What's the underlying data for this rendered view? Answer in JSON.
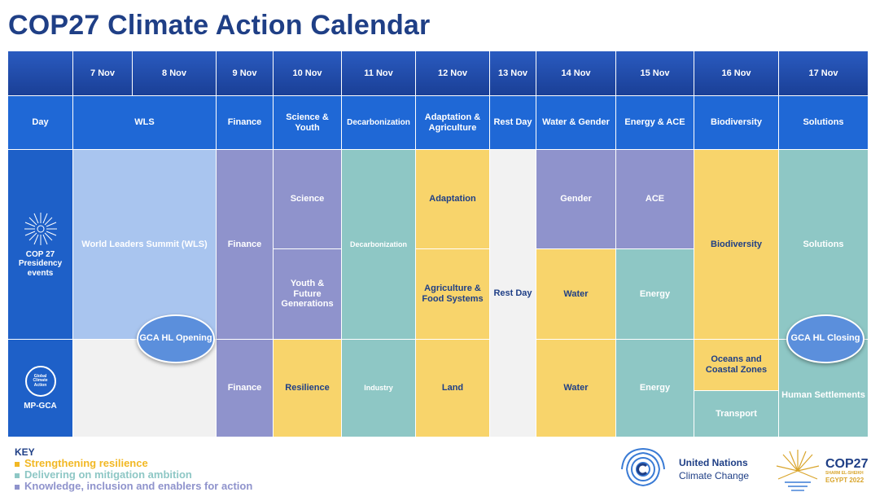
{
  "title": "COP27 Climate Action Calendar",
  "dates": [
    "7 Nov",
    "8 Nov",
    "9 Nov",
    "10 Nov",
    "11 Nov",
    "12 Nov",
    "13 Nov",
    "14 Nov",
    "15 Nov",
    "16 Nov",
    "17 Nov"
  ],
  "day_label": "Day",
  "themes": [
    "WLS",
    "Finance",
    "Science & Youth",
    "Decarbonization",
    "Adaptation & Agriculture",
    "Rest Day",
    "Water & Gender",
    "Energy & ACE",
    "Biodiversity",
    "Solutions"
  ],
  "rows": {
    "presidency": "COP 27 Presidency events",
    "mpgca": "MP-GCA",
    "mpgca_logo_text": "Global Climate Action"
  },
  "cells": {
    "wls": "World Leaders Summit (WLS)",
    "finance_top": "Finance",
    "science": "Science",
    "youth": "Youth & Future Generations",
    "decarbonization": "Decarbonization",
    "adaptation": "Adaptation",
    "agriculture": "Agriculture & Food Systems",
    "rest_day": "Rest Day",
    "gender": "Gender",
    "water_top": "Water",
    "ace": "ACE",
    "energy_top": "Energy",
    "biodiversity": "Biodiversity",
    "solutions": "Solutions",
    "finance_bottom": "Finance",
    "resilience": "Resilience",
    "industry": "Industry",
    "land": "Land",
    "water_bottom": "Water",
    "energy_bottom": "Energy",
    "oceans": "Oceans and Coastal Zones",
    "transport": "Transport",
    "human_settlements": "Human Settlements"
  },
  "bubbles": {
    "opening": "GCA HL Opening",
    "closing": "GCA HL Closing"
  },
  "key": {
    "title": "KEY",
    "items": [
      {
        "label": "Strengthening resilience",
        "color": "#f2b824"
      },
      {
        "label": "Delivering on mitigation ambition",
        "color": "#8ec7c5"
      },
      {
        "label": "Knowledge, inclusion and enablers for action",
        "color": "#8f93cc"
      }
    ]
  },
  "un_logo": {
    "line1": "United Nations",
    "line2": "Climate Change"
  },
  "cop_logo": {
    "main": "COP27",
    "sub1": "SHARM EL-SHEIKH",
    "sub2": "EGYPT 2022"
  },
  "colors": {
    "header_blue": "#1a3f96",
    "theme_blue": "#1f68d6",
    "title_blue": "#1f3f86",
    "light_blue": "#a9c5ef",
    "lavender": "#8f93cc",
    "teal": "#8ec7c5",
    "yellow": "#f8d46b"
  }
}
